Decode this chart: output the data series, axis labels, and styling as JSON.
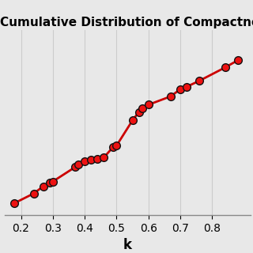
{
  "title": "Cumulative Distribution of Compactness",
  "xlabel": "k",
  "x": [
    0.18,
    0.24,
    0.27,
    0.29,
    0.3,
    0.37,
    0.38,
    0.4,
    0.42,
    0.44,
    0.46,
    0.49,
    0.5,
    0.55,
    0.57,
    0.58,
    0.6,
    0.67,
    0.7,
    0.72,
    0.76,
    0.84,
    0.88
  ],
  "y": [
    0.03,
    0.07,
    0.1,
    0.115,
    0.12,
    0.18,
    0.19,
    0.205,
    0.21,
    0.215,
    0.22,
    0.265,
    0.27,
    0.375,
    0.41,
    0.425,
    0.44,
    0.475,
    0.505,
    0.515,
    0.54,
    0.595,
    0.625
  ],
  "line_color": "#cc0000",
  "marker_color": "#ee1111",
  "marker_edge_color": "#111111",
  "marker_size": 7,
  "line_width": 2.0,
  "xlim": [
    0.15,
    0.92
  ],
  "ylim": [
    -0.02,
    0.75
  ],
  "xticks": [
    0.2,
    0.3,
    0.4,
    0.5,
    0.6,
    0.7,
    0.8
  ],
  "grid_color": "#cccccc",
  "bg_color": "#e8e8e8",
  "title_fontsize": 11,
  "xlabel_fontsize": 12,
  "tick_fontsize": 10
}
